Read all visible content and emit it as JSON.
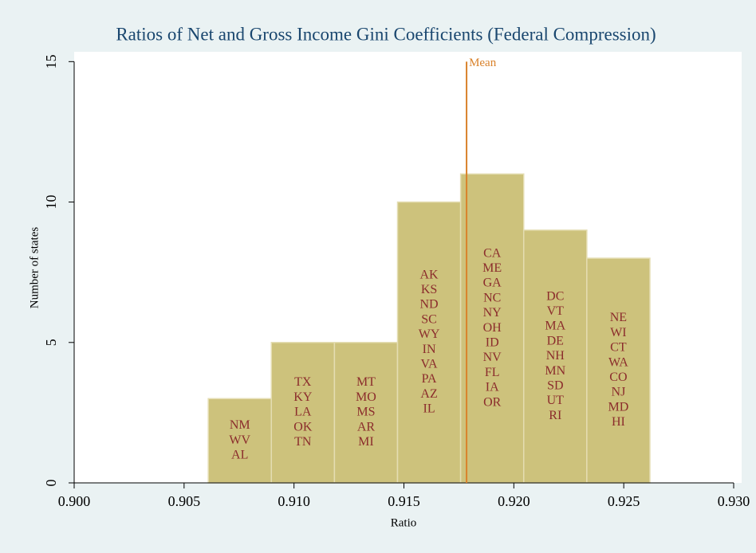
{
  "chart_data": {
    "type": "histogram",
    "title": "Ratios of Net and Gross Income Gini Coefficients (Federal Compression)",
    "x_label": "Ratio",
    "y_label": "Number of states",
    "bins": [
      0.9061,
      0.90897,
      0.91184,
      0.91471,
      0.91758,
      0.92045,
      0.92332,
      0.92619
    ],
    "values": [
      3,
      5,
      5,
      10,
      11,
      9,
      8
    ],
    "color": "#cdc27c",
    "bin_labels": [
      [
        "NM",
        "WV",
        "AL"
      ],
      [
        "TX",
        "KY",
        "LA",
        "OK",
        "TN"
      ],
      [
        "MT",
        "MO",
        "MS",
        "AR",
        "MI"
      ],
      [
        "AK",
        "KS",
        "ND",
        "SC",
        "WY",
        "IN",
        "VA",
        "PA",
        "AZ",
        "IL"
      ],
      [
        "CA",
        "ME",
        "GA",
        "NC",
        "NY",
        "OH",
        "ID",
        "NV",
        "FL",
        "IA",
        "OR"
      ],
      [
        "DC",
        "VT",
        "MA",
        "DE",
        "NH",
        "MN",
        "SD",
        "UT",
        "RI"
      ],
      [
        "NE",
        "WI",
        "CT",
        "WA",
        "CO",
        "NJ",
        "MD",
        "HI"
      ]
    ],
    "mean": {
      "value": 0.91785,
      "label": "Mean",
      "color": "#d9822b"
    },
    "xlim": [
      0.9,
      0.93
    ],
    "xticks": [
      {
        "value": 0.9,
        "label": "0.900"
      },
      {
        "value": 0.905,
        "label": "0.905"
      },
      {
        "value": 0.91,
        "label": "0.910"
      },
      {
        "value": 0.915,
        "label": "0.915"
      },
      {
        "value": 0.92,
        "label": "0.920"
      },
      {
        "value": 0.925,
        "label": "0.925"
      },
      {
        "value": 0.93,
        "label": "0.930"
      }
    ],
    "ylim": [
      0,
      15.35
    ],
    "yticks": [
      0,
      5,
      10,
      15
    ]
  }
}
